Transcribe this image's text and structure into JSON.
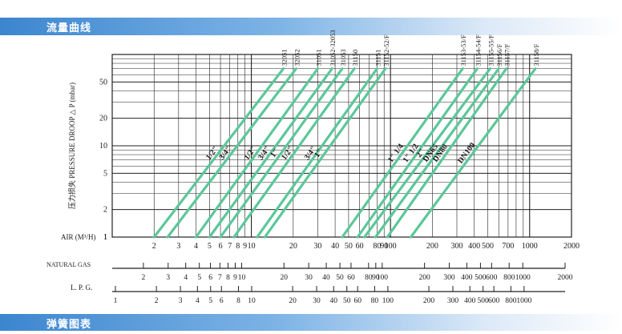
{
  "header": {
    "title": "流量曲线"
  },
  "footer": {
    "title": "弹簧图表"
  },
  "chart_data": {
    "type": "line",
    "title": "流量曲线",
    "ylabel": "压力损失 PRESSURE DROOP △ P (mbar)",
    "xlabel": "AIR (M³/H)",
    "ylim": [
      1,
      100
    ],
    "xlim": [
      1,
      2000
    ],
    "y_scale": "log",
    "x_scale": "log",
    "grid": true,
    "y_ticks": [
      "1",
      "2",
      "5",
      "10",
      "20",
      "50"
    ],
    "air_ticks": [
      {
        "label": "2",
        "v": 2
      },
      {
        "label": "3",
        "v": 3
      },
      {
        "label": "4",
        "v": 4
      },
      {
        "label": "5",
        "v": 5
      },
      {
        "label": "6",
        "v": 6
      },
      {
        "label": "7",
        "v": 7
      },
      {
        "label": "8",
        "v": 8
      },
      {
        "label": "9",
        "v": 9
      },
      {
        "label": "10",
        "v": 10
      },
      {
        "label": "20",
        "v": 20
      },
      {
        "label": "30",
        "v": 30
      },
      {
        "label": "40",
        "v": 40
      },
      {
        "label": "50",
        "v": 50
      },
      {
        "label": "60",
        "v": 60
      },
      {
        "label": "80",
        "v": 80
      },
      {
        "label": "90",
        "v": 90
      },
      {
        "label": "100",
        "v": 100
      },
      {
        "label": "200",
        "v": 200
      },
      {
        "label": "300",
        "v": 300
      },
      {
        "label": "400",
        "v": 400
      },
      {
        "label": "500",
        "v": 500
      },
      {
        "label": "700",
        "v": 700
      },
      {
        "label": "1000",
        "v": 1000
      },
      {
        "label": "2000",
        "v": 2000
      }
    ],
    "gas_scale": {
      "label": "NATURAL GAS",
      "ticks": [
        {
          "label": "2",
          "v": 2
        },
        {
          "label": "3",
          "v": 3
        },
        {
          "label": "4",
          "v": 4
        },
        {
          "label": "5",
          "v": 5
        },
        {
          "label": "6",
          "v": 6
        },
        {
          "label": "7",
          "v": 7
        },
        {
          "label": "8",
          "v": 8
        },
        {
          "label": "9",
          "v": 9
        },
        {
          "label": "10",
          "v": 10
        },
        {
          "label": "20",
          "v": 20
        },
        {
          "label": "30",
          "v": 30
        },
        {
          "label": "40",
          "v": 40
        },
        {
          "label": "50",
          "v": 50
        },
        {
          "label": "60",
          "v": 60
        },
        {
          "label": "80",
          "v": 80
        },
        {
          "label": "90",
          "v": 90
        },
        {
          "label": "100",
          "v": 100
        },
        {
          "label": "200",
          "v": 200
        },
        {
          "label": "300",
          "v": 300
        },
        {
          "label": "400",
          "v": 400
        },
        {
          "label": "500",
          "v": 500
        },
        {
          "label": "600",
          "v": 600
        },
        {
          "label": "800",
          "v": 800
        },
        {
          "label": "1000",
          "v": 1000
        },
        {
          "label": "2000",
          "v": 2000
        }
      ]
    },
    "lpg_scale": {
      "label": "L. P. G.",
      "ticks": [
        {
          "label": "1",
          "v": 1
        },
        {
          "label": "2",
          "v": 2
        },
        {
          "label": "3",
          "v": 3
        },
        {
          "label": "4",
          "v": 4
        },
        {
          "label": "5",
          "v": 5
        },
        {
          "label": "6",
          "v": 6
        },
        {
          "label": "8",
          "v": 8
        },
        {
          "label": "10",
          "v": 10
        },
        {
          "label": "20",
          "v": 20
        },
        {
          "label": "30",
          "v": 30
        },
        {
          "label": "40",
          "v": 40
        },
        {
          "label": "50",
          "v": 50
        },
        {
          "label": "60",
          "v": 60
        },
        {
          "label": "80",
          "v": 80
        },
        {
          "label": "100",
          "v": 100
        },
        {
          "label": "200",
          "v": 200
        },
        {
          "label": "300",
          "v": 300
        },
        {
          "label": "400",
          "v": 400
        },
        {
          "label": "500",
          "v": 500
        },
        {
          "label": "600",
          "v": 600
        },
        {
          "label": "800",
          "v": 800
        },
        {
          "label": "1000",
          "v": 1000
        }
      ]
    },
    "series": [
      {
        "name": "32051",
        "size": "1/2\"",
        "x": [
          2,
          17
        ],
        "y": [
          1,
          70
        ]
      },
      {
        "name": "32052",
        "size": "3/4\"",
        "x": [
          2.5,
          21
        ],
        "y": [
          1,
          70
        ]
      },
      {
        "name": "31051",
        "size": "1/2\"",
        "x": [
          4,
          30
        ],
        "y": [
          1,
          70
        ]
      },
      {
        "name": "31052-32053",
        "size": "3/4\"",
        "x": [
          5,
          38
        ],
        "y": [
          1,
          70
        ]
      },
      {
        "name": "31053",
        "size": "1\"",
        "x": [
          6,
          45
        ],
        "y": [
          1,
          70
        ]
      },
      {
        "name": "31150",
        "size": "1/2\"",
        "x": [
          7.5,
          55
        ],
        "y": [
          1,
          70
        ]
      },
      {
        "name": "31151",
        "size": "3/4\"",
        "x": [
          11,
          80
        ],
        "y": [
          1,
          70
        ]
      },
      {
        "name": "31152-52/F",
        "size": "1\"",
        "x": [
          12.5,
          92
        ],
        "y": [
          1,
          70
        ]
      },
      {
        "name": "31153-53/F",
        "size": "1\" 1/4",
        "x": [
          45,
          330
        ],
        "y": [
          1,
          70
        ]
      },
      {
        "name": "31154-54/F",
        "size": "1\" 1/2",
        "x": [
          58,
          420
        ],
        "y": [
          1,
          70
        ]
      },
      {
        "name": "31155-55/F",
        "size": "2\"",
        "x": [
          65,
          520
        ],
        "y": [
          1,
          70
        ]
      },
      {
        "name": "31156/F",
        "size": "DN65",
        "x": [
          78,
          600
        ],
        "y": [
          1,
          70
        ]
      },
      {
        "name": "31157/F",
        "size": "DN80",
        "x": [
          95,
          680
        ],
        "y": [
          1,
          70
        ]
      },
      {
        "name": "31158/F",
        "size": "DN100",
        "x": [
          140,
          1100
        ],
        "y": [
          1,
          70
        ]
      }
    ],
    "size_labels": [
      "1/2\"",
      "3/4\"",
      "1/2\"",
      "3/4\"",
      "1\"",
      "1/2\"",
      "3/4\"",
      "1\"",
      "1\" 1/4",
      "1\" 1/2",
      "2\"",
      "DN65",
      "DN80",
      "DN100"
    ]
  }
}
